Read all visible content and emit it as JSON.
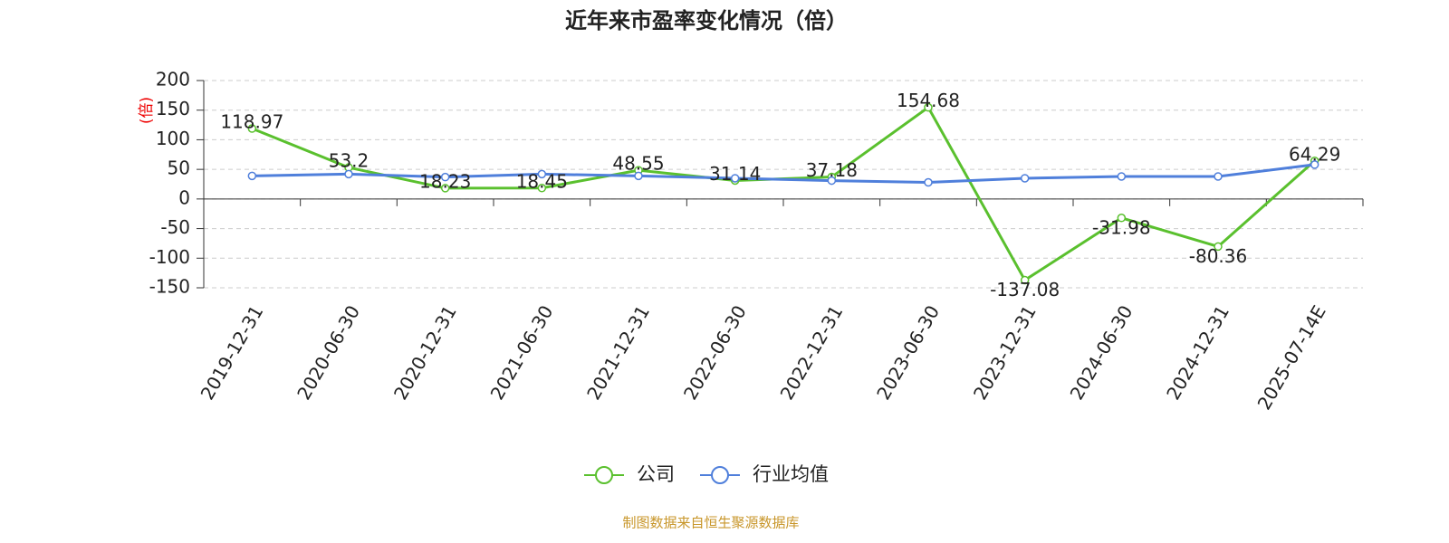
{
  "chart_data": {
    "type": "line",
    "title": "近年来市盈率变化情况（倍）",
    "y_label": "(倍)",
    "source": "制图数据来自恒生聚源数据库",
    "categories": [
      "2019-12-31",
      "2020-06-30",
      "2020-12-31",
      "2021-06-30",
      "2021-12-31",
      "2022-06-30",
      "2022-12-31",
      "2023-06-30",
      "2023-12-31",
      "2024-06-30",
      "2024-12-31",
      "2025-07-14E"
    ],
    "series": [
      {
        "name": "公司",
        "color": "#5ac02e",
        "labels": true,
        "values": [
          118.97,
          53.2,
          18.23,
          18.45,
          48.55,
          31.14,
          37.18,
          154.68,
          -137.08,
          -31.98,
          -80.36,
          64.29
        ]
      },
      {
        "name": "行业均值",
        "color": "#4f7fdb",
        "labels": false,
        "values": [
          39,
          42,
          37,
          42,
          39,
          35,
          31,
          28,
          35,
          38,
          38,
          58
        ]
      }
    ],
    "ylim": [
      -150,
      200
    ],
    "yticks": [
      -150,
      -100,
      -50,
      0,
      50,
      100,
      150,
      200
    ],
    "grid": true
  }
}
